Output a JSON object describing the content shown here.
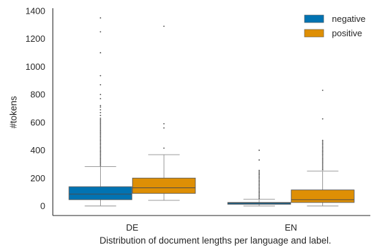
{
  "chart_data": {
    "type": "box",
    "xlabel": "Distribution of document lengths per language and label.",
    "ylabel": "#tokens",
    "categories": [
      "DE",
      "EN"
    ],
    "y_ticks": [
      0,
      200,
      400,
      600,
      800,
      1000,
      1200,
      1400
    ],
    "ylim": [
      -70,
      1430
    ],
    "grid": false,
    "legend_position": "top-right",
    "series": [
      {
        "name": "negative",
        "color": "#0173b2",
        "boxes": [
          {
            "category": "DE",
            "whisker_low": 0,
            "q1": 45,
            "median": 85,
            "q3": 138,
            "whisker_high": 283,
            "outliers": [
              290,
              300,
              310,
              320,
              330,
              340,
              350,
              360,
              370,
              380,
              390,
              400,
              410,
              420,
              430,
              440,
              450,
              460,
              470,
              480,
              490,
              500,
              510,
              520,
              530,
              540,
              550,
              560,
              570,
              580,
              590,
              600,
              610,
              620,
              630,
              650,
              670,
              690,
              710,
              720,
              770,
              800,
              870,
              935,
              1100,
              1250,
              1350
            ]
          },
          {
            "category": "EN",
            "whisker_low": 0,
            "q1": 12,
            "median": 20,
            "q3": 25,
            "whisker_high": 48,
            "outliers": [
              55,
              65,
              75,
              85,
              95,
              105,
              115,
              125,
              135,
              145,
              155,
              165,
              175,
              185,
              195,
              205,
              215,
              225,
              235,
              245,
              255,
              330,
              400
            ]
          }
        ]
      },
      {
        "name": "positive",
        "color": "#de8f05",
        "boxes": [
          {
            "category": "DE",
            "whisker_low": 40,
            "q1": 90,
            "median": 130,
            "q3": 200,
            "whisker_high": 368,
            "outliers": [
              415,
              560,
              590,
              1290
            ]
          },
          {
            "category": "EN",
            "whisker_low": 0,
            "q1": 25,
            "median": 45,
            "q3": 115,
            "whisker_high": 250,
            "outliers": [
              260,
              270,
              280,
              290,
              300,
              310,
              320,
              330,
              340,
              350,
              360,
              370,
              380,
              390,
              400,
              410,
              420,
              430,
              440,
              450,
              460,
              470,
              625,
              830
            ]
          }
        ]
      }
    ]
  }
}
